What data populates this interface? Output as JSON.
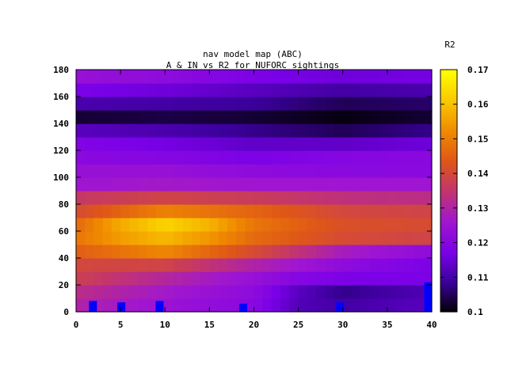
{
  "chart_data": {
    "type": "heatmap",
    "title": "nav model map (ABC)",
    "subtitle": "A & IN vs R2 for NUFORC sightings",
    "xlabel": "",
    "ylabel": "",
    "colorbar_label": "R2",
    "xlim": [
      0,
      40
    ],
    "ylim": [
      0,
      180
    ],
    "clim": [
      0.1,
      0.17
    ],
    "x_ticks": [
      "0",
      "5",
      "10",
      "15",
      "20",
      "25",
      "30",
      "35",
      "40"
    ],
    "y_ticks": [
      "0",
      "20",
      "40",
      "60",
      "80",
      "100",
      "120",
      "140",
      "160",
      "180"
    ],
    "colorbar_ticks": [
      "0.1",
      "0.11",
      "0.12",
      "0.13",
      "0.14",
      "0.15",
      "0.16",
      "0.17"
    ],
    "colormap": [
      "#000000",
      "#3a0099",
      "#7a00e8",
      "#a016d0",
      "#c23470",
      "#de5618",
      "#f08a00",
      "#f9c800",
      "#ffff00"
    ],
    "grid": false,
    "heatmap_rows": [
      {
        "y": 5,
        "x": [
          0,
          10,
          20,
          25,
          30,
          40
        ],
        "v": [
          0.13,
          0.125,
          0.121,
          0.112,
          0.11,
          0.113
        ]
      },
      {
        "y": 15,
        "x": [
          0,
          10,
          20,
          25,
          30,
          40
        ],
        "v": [
          0.133,
          0.127,
          0.122,
          0.113,
          0.108,
          0.112
        ]
      },
      {
        "y": 25,
        "x": [
          0,
          10,
          20,
          25,
          30,
          40
        ],
        "v": [
          0.138,
          0.131,
          0.124,
          0.12,
          0.118,
          0.118
        ]
      },
      {
        "y": 35,
        "x": [
          0,
          10,
          20,
          30,
          40
        ],
        "v": [
          0.14,
          0.139,
          0.13,
          0.122,
          0.118
        ]
      },
      {
        "y": 45,
        "x": [
          0,
          10,
          20,
          30,
          40
        ],
        "v": [
          0.145,
          0.152,
          0.141,
          0.128,
          0.122
        ]
      },
      {
        "y": 55,
        "x": [
          0,
          5,
          10,
          15,
          20,
          30,
          40
        ],
        "v": [
          0.149,
          0.155,
          0.159,
          0.154,
          0.147,
          0.141,
          0.139
        ]
      },
      {
        "y": 65,
        "x": [
          0,
          5,
          10,
          15,
          20,
          30,
          40
        ],
        "v": [
          0.147,
          0.157,
          0.163,
          0.158,
          0.149,
          0.142,
          0.141
        ]
      },
      {
        "y": 75,
        "x": [
          0,
          10,
          20,
          30,
          40
        ],
        "v": [
          0.141,
          0.151,
          0.146,
          0.14,
          0.139
        ]
      },
      {
        "y": 85,
        "x": [
          0,
          10,
          20,
          30,
          40
        ],
        "v": [
          0.136,
          0.139,
          0.137,
          0.134,
          0.133
        ]
      },
      {
        "y": 95,
        "x": [
          0,
          10,
          20,
          30,
          40
        ],
        "v": [
          0.126,
          0.127,
          0.126,
          0.126,
          0.126
        ]
      },
      {
        "y": 105,
        "x": [
          0,
          10,
          20,
          30,
          40
        ],
        "v": [
          0.124,
          0.124,
          0.122,
          0.121,
          0.121
        ]
      },
      {
        "y": 115,
        "x": [
          0,
          10,
          20,
          30,
          40
        ],
        "v": [
          0.121,
          0.12,
          0.118,
          0.12,
          0.121
        ]
      },
      {
        "y": 125,
        "x": [
          0,
          10,
          20,
          30,
          40
        ],
        "v": [
          0.119,
          0.117,
          0.114,
          0.114,
          0.116
        ]
      },
      {
        "y": 135,
        "x": [
          0,
          10,
          20,
          30,
          40
        ],
        "v": [
          0.113,
          0.111,
          0.108,
          0.105,
          0.108
        ]
      },
      {
        "y": 145,
        "x": [
          0,
          10,
          20,
          30,
          40
        ],
        "v": [
          0.103,
          0.104,
          0.103,
          0.101,
          0.103
        ]
      },
      {
        "y": 155,
        "x": [
          0,
          10,
          20,
          30,
          40
        ],
        "v": [
          0.111,
          0.11,
          0.109,
          0.105,
          0.106
        ]
      },
      {
        "y": 165,
        "x": [
          0,
          10,
          20,
          30,
          40
        ],
        "v": [
          0.118,
          0.116,
          0.113,
          0.11,
          0.111
        ]
      },
      {
        "y": 175,
        "x": [
          0,
          10,
          20,
          30,
          40
        ],
        "v": [
          0.124,
          0.122,
          0.118,
          0.116,
          0.117
        ]
      }
    ],
    "markers": [
      {
        "x": 1.9,
        "y0": 0,
        "y1": 8
      },
      {
        "x": 5.1,
        "y0": 0,
        "y1": 7
      },
      {
        "x": 9.4,
        "y0": 0,
        "y1": 8
      },
      {
        "x": 18.8,
        "y0": 0,
        "y1": 6
      },
      {
        "x": 29.7,
        "y0": 0,
        "y1": 7
      },
      {
        "x": 39.6,
        "y0": 0,
        "y1": 22
      }
    ],
    "marker_color": "#0000ff"
  }
}
